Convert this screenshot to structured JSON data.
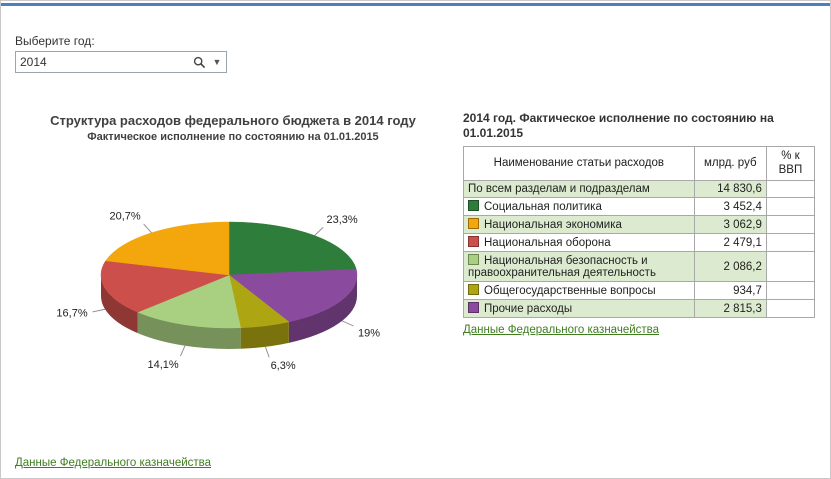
{
  "controls": {
    "year_label": "Выберите год:",
    "year_value": "2014"
  },
  "chart": {
    "title": "Структура расходов федерального бюджета в 2014 году",
    "subtitle": "Фактическое исполнение по состоянию на 01.01.2015",
    "source_link": "Данные Федерального казначейства"
  },
  "chart_data": {
    "type": "pie",
    "title": "Структура расходов федерального бюджета в 2014 году",
    "subtitle": "Фактическое исполнение по состоянию на 01.01.2015",
    "legend_position": "none",
    "slices": [
      {
        "name": "Социальная политика",
        "value": 23.3,
        "label": "23,3%",
        "color": "#2f7d3a"
      },
      {
        "name": "Прочие расходы",
        "value": 19.0,
        "label": "19%",
        "color": "#8a4a9d"
      },
      {
        "name": "Общегосударственные вопросы",
        "value": 6.3,
        "label": "6,3%",
        "color": "#aea512"
      },
      {
        "name": "Национальная безопасность и правоохранительная деятельность",
        "value": 14.1,
        "label": "14,1%",
        "color": "#a8d080"
      },
      {
        "name": "Национальная оборона",
        "value": 16.7,
        "label": "16,7%",
        "color": "#cc4f4b"
      },
      {
        "name": "Национальная экономика",
        "value": 20.7,
        "label": "20,7%",
        "color": "#f3a70c"
      }
    ]
  },
  "table": {
    "heading": "2014 год. Фактическое исполнение по состоянию на 01.01.2015",
    "columns": [
      "Наименование статьи расходов",
      "млрд. руб",
      "% к ВВП"
    ],
    "rows": [
      {
        "name": "По всем разделам и подразделам",
        "value": "14 830,6",
        "vvp": "",
        "color": null
      },
      {
        "name": "Социальная политика",
        "value": "3 452,4",
        "vvp": "",
        "color": "#2f7d3a"
      },
      {
        "name": "Национальная экономика",
        "value": "3 062,9",
        "vvp": "",
        "color": "#f3a70c"
      },
      {
        "name": "Национальная оборона",
        "value": "2 479,1",
        "vvp": "",
        "color": "#cc4f4b"
      },
      {
        "name": "Национальная безопасность и правоохранительная деятельность",
        "value": "2 086,2",
        "vvp": "",
        "color": "#a8d080"
      },
      {
        "name": "Общегосударственные вопросы",
        "value": "934,7",
        "vvp": "",
        "color": "#aea512"
      },
      {
        "name": "Прочие расходы",
        "value": "2 815,3",
        "vvp": "",
        "color": "#8a4a9d"
      }
    ],
    "source_link": "Данные Федерального казначейства"
  }
}
